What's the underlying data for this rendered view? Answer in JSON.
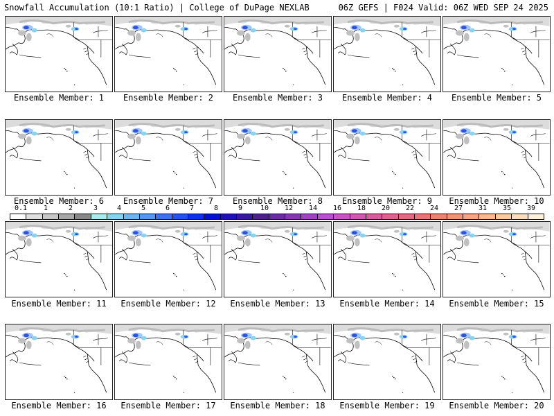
{
  "header": {
    "left": "Snowfall Accumulation (10:1 Ratio) | College of DuPage NEXLAB",
    "right": "06Z GEFS | F024 Valid: 06Z WED SEP 24 2025"
  },
  "members": [
    "Ensemble Member: 1",
    "Ensemble Member: 2",
    "Ensemble Member: 3",
    "Ensemble Member: 4",
    "Ensemble Member: 5",
    "Ensemble Member: 6",
    "Ensemble Member: 7",
    "Ensemble Member: 8",
    "Ensemble Member: 9",
    "Ensemble Member: 10",
    "Ensemble Member: 11",
    "Ensemble Member: 12",
    "Ensemble Member: 13",
    "Ensemble Member: 14",
    "Ensemble Member: 15",
    "Ensemble Member: 16",
    "Ensemble Member: 17",
    "Ensemble Member: 18",
    "Ensemble Member: 19",
    "Ensemble Member: 20"
  ],
  "colorbar": {
    "labels": [
      "0.1",
      "1",
      "2",
      "3",
      "4",
      "5",
      "6",
      "7",
      "8",
      "9",
      "10",
      "12",
      "14",
      "16",
      "18",
      "20",
      "22",
      "24",
      "27",
      "31",
      "35",
      "39"
    ],
    "colors": [
      "#ffffff",
      "#e0e0e0",
      "#c8c8c8",
      "#a8a8a8",
      "#888888",
      "#a8ecf0",
      "#88d4f0",
      "#70b4f0",
      "#5894f0",
      "#4070f0",
      "#2850f0",
      "#1030f0",
      "#0010d8",
      "#2010b8",
      "#3818a0",
      "#502088",
      "#6a2ca0",
      "#8438b0",
      "#9e44c0",
      "#b850d0",
      "#c854c0",
      "#d058b0",
      "#d85ca0",
      "#e06090",
      "#e46880",
      "#e87474",
      "#ec8270",
      "#f09478",
      "#f4a484",
      "#f8b890",
      "#fccaa0",
      "#fedcb8",
      "#fff0d8"
    ]
  }
}
